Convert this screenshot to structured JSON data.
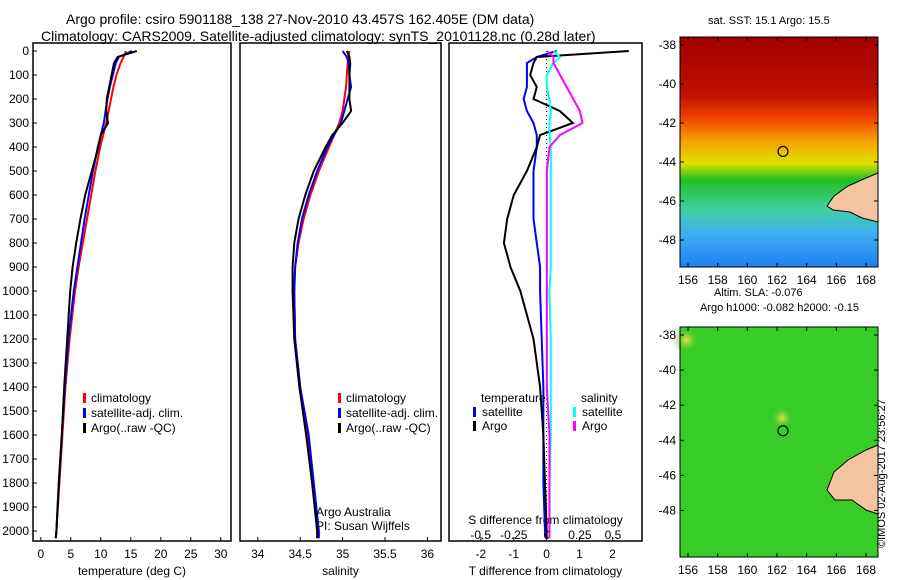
{
  "title_line1": "Argo profile: csiro 5901188_138 27-Nov-2010 43.457S 162.405E (DM data)",
  "title_line2": "Climatology: CARS2009. Satellite-adjusted climatology: synTS_20101128.nc (0.28d later)",
  "colors": {
    "climatology": "#ff0000",
    "satellite": "#0000ff",
    "argo": "#000000",
    "sat_s": "#00ffff",
    "argo_s": "#ff00ff"
  },
  "chart_data": [
    {
      "type": "line",
      "name": "temperature",
      "xlabel": "temperature (deg C)",
      "xlim": [
        -1.3,
        31.7
      ],
      "ylim": [
        2050,
        0
      ],
      "xticks": [
        0,
        5,
        10,
        15,
        20,
        25,
        30
      ],
      "yticks": [
        0,
        100,
        200,
        300,
        400,
        500,
        600,
        700,
        800,
        900,
        1000,
        1100,
        1200,
        1300,
        1400,
        1500,
        1600,
        1700,
        1800,
        1900,
        2000
      ],
      "legend": [
        "climatology",
        "satellite-adj. clim.",
        "Argo(..raw -QC)"
      ],
      "depth": [
        0,
        25,
        50,
        100,
        150,
        200,
        250,
        300,
        350,
        400,
        500,
        600,
        700,
        800,
        900,
        1000,
        1200,
        1400,
        1600,
        1800,
        2000,
        2030
      ],
      "series": [
        {
          "name": "climatology",
          "color": "#ff0000",
          "values": [
            14.2,
            13.8,
            13.3,
            12.6,
            12.1,
            11.7,
            11.3,
            10.9,
            10.4,
            9.9,
            9.1,
            8.4,
            7.7,
            7.0,
            6.3,
            5.7,
            4.8,
            4.1,
            3.6,
            3.1,
            2.6,
            2.5
          ]
        },
        {
          "name": "satellite-adj. clim.",
          "color": "#0000ff",
          "values": [
            15.2,
            13.0,
            12.5,
            12.0,
            11.5,
            11.1,
            10.8,
            10.5,
            10.0,
            9.5,
            8.7,
            8.0,
            7.3,
            6.7,
            6.1,
            5.5,
            4.6,
            4.0,
            3.5,
            3.0,
            2.6,
            2.5
          ]
        },
        {
          "name": "Argo(..raw -QC)",
          "color": "#000000",
          "values": [
            16.0,
            12.8,
            12.2,
            11.8,
            11.4,
            11.0,
            10.9,
            11.2,
            10.0,
            9.6,
            8.5,
            7.4,
            6.6,
            5.9,
            5.3,
            4.9,
            4.4,
            3.9,
            3.5,
            3.0,
            2.6,
            2.5
          ]
        }
      ]
    },
    {
      "type": "line",
      "name": "salinity",
      "xlabel": "salinity",
      "xlim": [
        33.79,
        36.16
      ],
      "ylim": [
        2050,
        0
      ],
      "xticks": [
        34,
        34.5,
        35,
        35.5,
        36
      ],
      "legend": [
        "climatology",
        "satellite-adj. clim.",
        "Argo(..raw -QC)"
      ],
      "annotation": [
        "Argo Australia",
        "PI: Susan Wijffels"
      ],
      "depth": [
        0,
        25,
        50,
        100,
        150,
        200,
        250,
        300,
        350,
        400,
        500,
        600,
        700,
        800,
        900,
        1000,
        1200,
        1400,
        1600,
        1800,
        2000,
        2030
      ],
      "series": [
        {
          "name": "climatology",
          "color": "#ff0000",
          "values": [
            35.08,
            35.07,
            35.06,
            35.05,
            35.04,
            35.02,
            35.0,
            34.96,
            34.9,
            34.84,
            34.72,
            34.62,
            34.54,
            34.48,
            34.44,
            34.43,
            34.44,
            34.5,
            34.58,
            34.65,
            34.7,
            34.7
          ]
        },
        {
          "name": "satellite-adj. clim.",
          "color": "#0000ff",
          "values": [
            35.0,
            35.05,
            35.07,
            35.08,
            35.1,
            35.06,
            35.02,
            34.98,
            34.9,
            34.82,
            34.7,
            34.6,
            34.52,
            34.47,
            34.44,
            34.43,
            34.44,
            34.5,
            34.6,
            34.66,
            34.72,
            34.72
          ]
        },
        {
          "name": "Argo(..raw -QC)",
          "color": "#000000",
          "values": [
            35.05,
            35.08,
            35.09,
            35.08,
            35.08,
            35.08,
            35.1,
            35.0,
            34.88,
            34.8,
            34.66,
            34.56,
            34.48,
            34.43,
            34.41,
            34.41,
            34.43,
            34.49,
            34.57,
            34.64,
            34.7,
            34.7
          ]
        }
      ]
    },
    {
      "type": "line",
      "name": "differences",
      "xlabel": "T difference from climatology",
      "x2label": "S difference from climatology",
      "xlim": [
        -2.97,
        2.9
      ],
      "x2lim": [
        -0.74,
        0.72
      ],
      "xticks": [
        -2,
        -1,
        0,
        1,
        2
      ],
      "x2ticks": [
        -0.5,
        -0.25,
        0,
        0.25,
        0.5
      ],
      "x2ticklabels": [
        "-0.5",
        "-0.25",
        "0",
        "0.25",
        "0.5"
      ],
      "legend_t_title": "temperature",
      "legend_s_title": "salinity",
      "legend_t": [
        "satellite",
        "Argo"
      ],
      "legend_s": [
        "satellite",
        "Argo"
      ],
      "depth": [
        0,
        25,
        50,
        100,
        150,
        200,
        250,
        300,
        350,
        400,
        500,
        600,
        700,
        800,
        900,
        1000,
        1200,
        1400,
        1600,
        1800,
        2000,
        2030
      ],
      "series": [
        {
          "name": "T satellite",
          "axis": "T",
          "color": "#0000ff",
          "values": [
            0.3,
            -0.3,
            -0.6,
            -0.6,
            -0.6,
            -0.7,
            -0.6,
            -0.4,
            -0.3,
            -0.3,
            -0.4,
            -0.4,
            -0.4,
            -0.3,
            -0.2,
            -0.2,
            -0.15,
            -0.1,
            -0.1,
            -0.1,
            -0.05,
            0
          ]
        },
        {
          "name": "T Argo",
          "axis": "T",
          "color": "#000000",
          "values": [
            2.5,
            -0.3,
            -0.4,
            -0.5,
            -0.3,
            -0.4,
            0.4,
            0.8,
            -0.2,
            -0.3,
            -0.6,
            -1.0,
            -1.2,
            -1.3,
            -1.1,
            -0.8,
            -0.4,
            -0.2,
            -0.1,
            -0.05,
            0,
            0
          ]
        },
        {
          "name": "S satellite",
          "axis": "S",
          "color": "#00ffff",
          "values": [
            0.05,
            0.1,
            0.05,
            0.0,
            0.0,
            0.02,
            0.03,
            0.02,
            0.02,
            0.03,
            0.03,
            0.03,
            0.03,
            0.03,
            0.03,
            0.02,
            0.03,
            0.03,
            0.03,
            0.02,
            0.02,
            0.02
          ]
        },
        {
          "name": "S Argo",
          "axis": "S",
          "color": "#ff00ff",
          "values": [
            0.0,
            0.05,
            0.05,
            0.1,
            0.15,
            0.2,
            0.25,
            0.27,
            0.1,
            0.02,
            0.0,
            0.0,
            0.0,
            0.0,
            0.0,
            0.0,
            0.0,
            0.0,
            0.02,
            0.02,
            0.02,
            0.02
          ]
        }
      ]
    }
  ],
  "map1": {
    "title": "sat. SST: 15.1  Argo: 15.5",
    "xticks": [
      "156",
      "158",
      "160",
      "162",
      "164",
      "166",
      "168"
    ],
    "yticks": [
      "-38",
      "-40",
      "-42",
      "-44",
      "-46",
      "-48"
    ],
    "argo_lon": 162.405,
    "argo_lat": -43.457
  },
  "map2": {
    "title1": "Altim. SLA: -0.076",
    "title2": "Argo h1000: -0.082 h2000: -0.15",
    "xticks": [
      "156",
      "158",
      "160",
      "162",
      "164",
      "166",
      "168"
    ],
    "yticks": [
      "-38",
      "-40",
      "-42",
      "-44",
      "-46",
      "-48"
    ],
    "argo_lon": 162.405,
    "argo_lat": -43.457
  },
  "footer": "©IMOS 02-Aug-2017 23:56:27"
}
